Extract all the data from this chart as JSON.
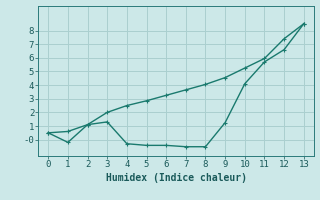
{
  "line1_x": [
    0,
    1,
    2,
    3,
    4,
    5,
    6,
    7,
    8,
    9,
    10,
    11,
    12,
    13
  ],
  "line1_y": [
    0.5,
    0.6,
    1.1,
    2.0,
    2.5,
    2.85,
    3.25,
    3.65,
    4.05,
    4.55,
    5.25,
    5.95,
    7.4,
    8.5
  ],
  "line2_x": [
    0,
    1,
    2,
    3,
    4,
    5,
    6,
    7,
    8,
    9,
    10,
    11,
    12,
    13
  ],
  "line2_y": [
    0.5,
    -0.2,
    1.1,
    1.3,
    -0.3,
    -0.42,
    -0.42,
    -0.52,
    -0.52,
    1.25,
    4.1,
    5.7,
    6.6,
    8.5
  ],
  "line_color": "#1a7a6e",
  "background_color": "#cce8e8",
  "grid_color": "#aacfcf",
  "xlabel": "Humidex (Indice chaleur)",
  "xlim": [
    -0.5,
    13.5
  ],
  "ylim": [
    -1.2,
    9.8
  ],
  "yticks": [
    0,
    1,
    2,
    3,
    4,
    5,
    6,
    7,
    8
  ],
  "xticks": [
    0,
    1,
    2,
    3,
    4,
    5,
    6,
    7,
    8,
    9,
    10,
    11,
    12,
    13
  ],
  "xlabel_fontsize": 7,
  "tick_fontsize": 6.5,
  "line_width": 1.0,
  "marker_size": 3.5
}
